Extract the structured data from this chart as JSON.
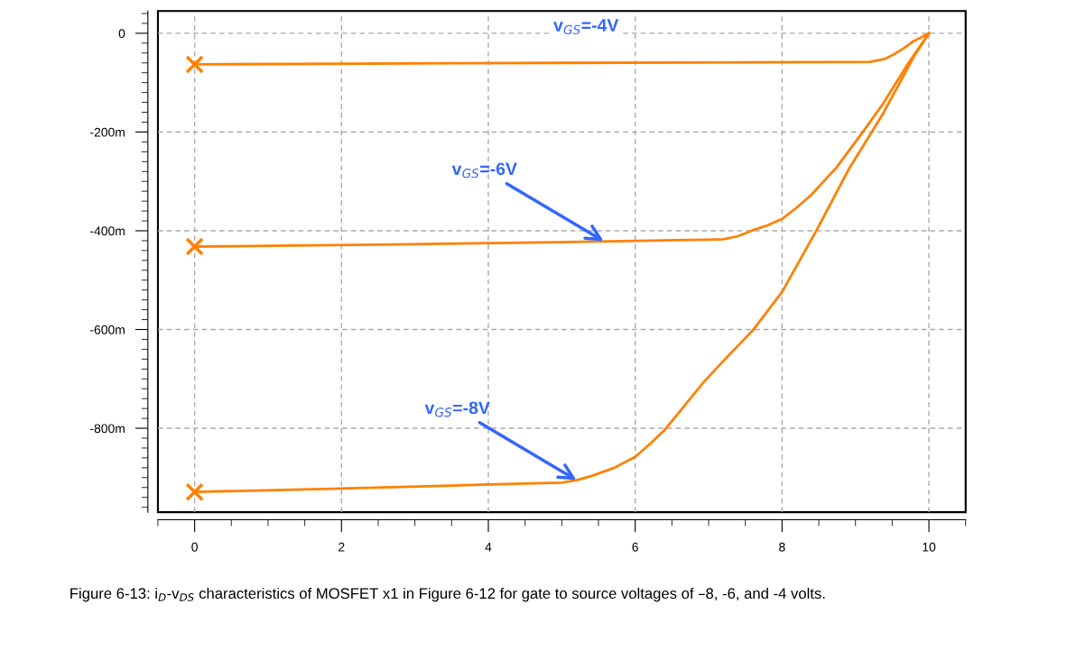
{
  "chart_data": {
    "type": "line",
    "xlim": [
      -0.5,
      10.5
    ],
    "xticks": [
      0,
      2,
      4,
      6,
      8,
      10
    ],
    "ylim": [
      -970,
      45
    ],
    "yticks": [
      {
        "value": 0,
        "label": "0"
      },
      {
        "value": -200,
        "label": "-200m"
      },
      {
        "value": -400,
        "label": "-400m"
      },
      {
        "value": -600,
        "label": "-600m"
      },
      {
        "value": -800,
        "label": "-800m"
      }
    ],
    "grid": true,
    "line_style": "solid",
    "series": [
      {
        "color": "#ff8000",
        "x": [
          0,
          5,
          9.2,
          9.4,
          9.53,
          9.66,
          9.79,
          9.9,
          10
        ],
        "values": [
          -63,
          -60,
          -58,
          -52,
          -42,
          -30,
          -16,
          -8,
          0
        ]
      },
      {
        "color": "#ff8000",
        "x": [
          0,
          2.5,
          4.96,
          7.0,
          7.2,
          7.4,
          7.6,
          7.8,
          8.0,
          8.2,
          8.4,
          8.74,
          9.1,
          9.37,
          9.7,
          10
        ],
        "values": [
          -432,
          -428,
          -423,
          -418,
          -417,
          -411,
          -399,
          -389,
          -376,
          -353,
          -327,
          -272,
          -200,
          -144,
          -65,
          0
        ]
      },
      {
        "color": "#ff8000",
        "x": [
          0,
          2,
          4,
          5,
          5.2,
          5.4,
          5.7,
          6,
          6.2,
          6.41,
          6.65,
          6.93,
          7.25,
          7.6,
          8,
          8.47,
          8.91,
          9.37,
          9.8,
          10
        ],
        "values": [
          -929,
          -922,
          -914,
          -910,
          -905,
          -897,
          -881,
          -858,
          -832,
          -802,
          -758,
          -707,
          -656,
          -602,
          -524,
          -399,
          -275,
          -164,
          -46,
          0
        ]
      },
      {
        "type": "scatter",
        "marker": "cross",
        "color": "#ff8000",
        "x": [
          0,
          0,
          0
        ],
        "values": [
          -63,
          -432,
          -929
        ]
      }
    ],
    "annotations": [
      "v$_{GS}$=-4V",
      {
        "text": "v$_{GS}$=-6V",
        "x": 5.57,
        "y": -421
      },
      {
        "text": "v$_{GS}$=-8V",
        "x": 5.2,
        "y": -905
      },
      "Figure 6-13: i$_{D}$-v$_{DS}$ characteristics of MOSFET x1 in Figure 6-12 for gate to source voltages of –8, -6, and -4 volts."
    ]
  }
}
